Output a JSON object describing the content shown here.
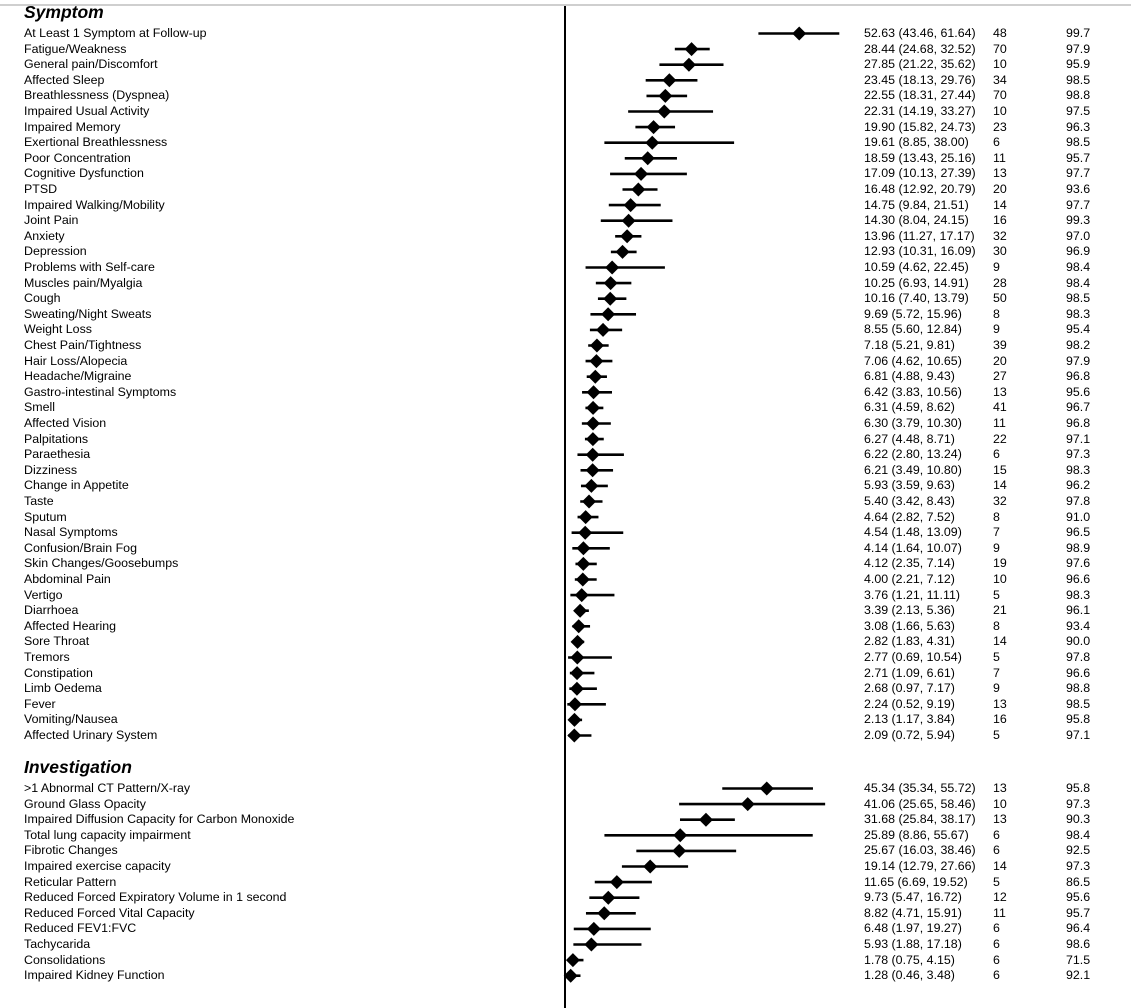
{
  "chart_data": {
    "type": "forest",
    "x_scale": "linear",
    "reference_line": 0,
    "columns": [
      "estimate_ci",
      "n",
      "quality"
    ],
    "sections": [
      {
        "title": "Symptom",
        "rows": [
          {
            "label": "At Least 1 Symptom at Follow-up",
            "est": 52.63,
            "lo": 43.46,
            "hi": 61.64,
            "est_text": "52.63 (43.46, 61.64)",
            "n": "48",
            "q": "99.7",
            "highlight": ""
          },
          {
            "label": "Fatigue/Weakness",
            "est": 28.44,
            "lo": 24.68,
            "hi": 32.52,
            "est_text": "28.44 (24.68, 32.52)",
            "n": "70",
            "q": "97.9",
            "highlight": ""
          },
          {
            "label": "General pain/Discomfort",
            "est": 27.85,
            "lo": 21.22,
            "hi": 35.62,
            "est_text": "27.85 (21.22, 35.62)",
            "n": "10",
            "q": "95.9",
            "highlight": ""
          },
          {
            "label": "Affected Sleep",
            "est": 23.45,
            "lo": 18.13,
            "hi": 29.76,
            "est_text": "23.45 (18.13, 29.76)",
            "n": "34",
            "q": "98.5",
            "highlight": ""
          },
          {
            "label": "Breathlessness (Dyspnea)",
            "est": 22.55,
            "lo": 18.31,
            "hi": 27.44,
            "est_text": "22.55 (18.31, 27.44)",
            "n": "70",
            "q": "98.8",
            "highlight": ""
          },
          {
            "label": "Impaired Usual Activity",
            "est": 22.31,
            "lo": 14.19,
            "hi": 33.27,
            "est_text": "22.31 (14.19, 33.27)",
            "n": "10",
            "q": "97.5",
            "highlight": ""
          },
          {
            "label": "Impaired Memory",
            "est": 19.9,
            "lo": 15.82,
            "hi": 24.73,
            "est_text": "19.90 (15.82, 24.73)",
            "n": "23",
            "q": "96.3",
            "highlight": ""
          },
          {
            "label": "Exertional Breathlessness",
            "est": 19.61,
            "lo": 8.85,
            "hi": 38.0,
            "est_text": "19.61 (8.85, 38.00)",
            "n": "6",
            "q": "98.5",
            "highlight": ""
          },
          {
            "label": "Poor Concentration",
            "est": 18.59,
            "lo": 13.43,
            "hi": 25.16,
            "est_text": "18.59 (13.43, 25.16)",
            "n": "11",
            "q": "95.7",
            "highlight": "cyan"
          },
          {
            "label": "Cognitive Dysfunction",
            "est": 17.09,
            "lo": 10.13,
            "hi": 27.39,
            "est_text": "17.09 (10.13, 27.39)",
            "n": "13",
            "q": "97.7",
            "highlight": "cyan"
          },
          {
            "label": "PTSD",
            "est": 16.48,
            "lo": 12.92,
            "hi": 20.79,
            "est_text": "16.48 (12.92, 20.79)",
            "n": "20",
            "q": "93.6",
            "highlight": "pink"
          },
          {
            "label": "Impaired Walking/Mobility",
            "est": 14.75,
            "lo": 9.84,
            "hi": 21.51,
            "est_text": "14.75 (9.84, 21.51)",
            "n": "14",
            "q": "97.7",
            "highlight": ""
          },
          {
            "label": "Joint Pain",
            "est": 14.3,
            "lo": 8.04,
            "hi": 24.15,
            "est_text": "14.30 (8.04, 24.15)",
            "n": "16",
            "q": "99.3",
            "highlight": ""
          },
          {
            "label": "Anxiety",
            "est": 13.96,
            "lo": 11.27,
            "hi": 17.17,
            "est_text": "13.96 (11.27, 17.17)",
            "n": "32",
            "q": "97.0",
            "highlight": "pink"
          },
          {
            "label": "Depression",
            "est": 12.93,
            "lo": 10.31,
            "hi": 16.09,
            "est_text": "12.93 (10.31, 16.09)",
            "n": "30",
            "q": "96.9",
            "highlight": "pink"
          },
          {
            "label": "Problems with Self-care",
            "est": 10.59,
            "lo": 4.62,
            "hi": 22.45,
            "est_text": "10.59 (4.62, 22.45)",
            "n": "9",
            "q": "98.4",
            "highlight": ""
          },
          {
            "label": "Muscles pain/Myalgia",
            "est": 10.25,
            "lo": 6.93,
            "hi": 14.91,
            "est_text": "10.25 (6.93, 14.91)",
            "n": "28",
            "q": "98.4",
            "highlight": ""
          },
          {
            "label": "Cough",
            "est": 10.16,
            "lo": 7.4,
            "hi": 13.79,
            "est_text": "10.16 (7.40, 13.79)",
            "n": "50",
            "q": "98.5",
            "highlight": ""
          },
          {
            "label": "Sweating/Night Sweats",
            "est": 9.69,
            "lo": 5.72,
            "hi": 15.96,
            "est_text": "9.69 (5.72, 15.96)",
            "n": "8",
            "q": "98.3",
            "highlight": ""
          },
          {
            "label": "Weight Loss",
            "est": 8.55,
            "lo": 5.6,
            "hi": 12.84,
            "est_text": "8.55 (5.60, 12.84)",
            "n": "9",
            "q": "95.4",
            "highlight": ""
          },
          {
            "label": "Chest Pain/Tightness",
            "est": 7.18,
            "lo": 5.21,
            "hi": 9.81,
            "est_text": "7.18 (5.21, 9.81)",
            "n": "39",
            "q": "98.2",
            "highlight": ""
          },
          {
            "label": "Hair Loss/Alopecia",
            "est": 7.06,
            "lo": 4.62,
            "hi": 10.65,
            "est_text": "7.06 (4.62, 10.65)",
            "n": "20",
            "q": "97.9",
            "highlight": ""
          },
          {
            "label": "Headache/Migraine",
            "est": 6.81,
            "lo": 4.88,
            "hi": 9.43,
            "est_text": "6.81 (4.88, 9.43)",
            "n": "27",
            "q": "96.8",
            "highlight": ""
          },
          {
            "label": "Gastro-intestinal Symptoms",
            "est": 6.42,
            "lo": 3.83,
            "hi": 10.56,
            "est_text": "6.42 (3.83, 10.56)",
            "n": "13",
            "q": "95.6",
            "highlight": ""
          },
          {
            "label": "Smell",
            "est": 6.31,
            "lo": 4.59,
            "hi": 8.62,
            "est_text": "6.31 (4.59, 8.62)",
            "n": "41",
            "q": "96.7",
            "highlight": "cyan"
          },
          {
            "label": "Affected Vision",
            "est": 6.3,
            "lo": 3.79,
            "hi": 10.3,
            "est_text": "6.30 (3.79, 10.30)",
            "n": "11",
            "q": "96.8",
            "highlight": "cyan"
          },
          {
            "label": "Palpitations",
            "est": 6.27,
            "lo": 4.48,
            "hi": 8.71,
            "est_text": "6.27 (4.48, 8.71)",
            "n": "22",
            "q": "97.1",
            "highlight": ""
          },
          {
            "label": "Paraethesia",
            "est": 6.22,
            "lo": 2.8,
            "hi": 13.24,
            "est_text": "6.22 (2.80, 13.24)",
            "n": "6",
            "q": "97.3",
            "highlight": ""
          },
          {
            "label": "Dizziness",
            "est": 6.21,
            "lo": 3.49,
            "hi": 10.8,
            "est_text": "6.21 (3.49, 10.80)",
            "n": "15",
            "q": "98.3",
            "highlight": "pink"
          },
          {
            "label": "Change in Appetite",
            "est": 5.93,
            "lo": 3.59,
            "hi": 9.63,
            "est_text": "5.93 (3.59, 9.63)",
            "n": "14",
            "q": "96.2",
            "highlight": ""
          },
          {
            "label": "Taste",
            "est": 5.4,
            "lo": 3.42,
            "hi": 8.43,
            "est_text": "5.40 (3.42, 8.43)",
            "n": "32",
            "q": "97.8",
            "highlight": ""
          },
          {
            "label": "Sputum",
            "est": 4.64,
            "lo": 2.82,
            "hi": 7.52,
            "est_text": "4.64 (2.82, 7.52)",
            "n": "8",
            "q": "91.0",
            "highlight": "cyan"
          },
          {
            "label": "Nasal Symptoms",
            "est": 4.54,
            "lo": 1.48,
            "hi": 13.09,
            "est_text": "4.54 (1.48, 13.09)",
            "n": "7",
            "q": "96.5",
            "highlight": ""
          },
          {
            "label": "Confusion/Brain Fog",
            "est": 4.14,
            "lo": 1.64,
            "hi": 10.07,
            "est_text": "4.14 (1.64, 10.07)",
            "n": "9",
            "q": "98.9",
            "highlight": "cyan"
          },
          {
            "label": "Skin Changes/Goosebumps",
            "est": 4.12,
            "lo": 2.35,
            "hi": 7.14,
            "est_text": "4.12 (2.35, 7.14)",
            "n": "19",
            "q": "97.6",
            "highlight": ""
          },
          {
            "label": "Abdominal Pain",
            "est": 4.0,
            "lo": 2.21,
            "hi": 7.12,
            "est_text": "4.00 (2.21, 7.12)",
            "n": "10",
            "q": "96.6",
            "highlight": ""
          },
          {
            "label": "Vertigo",
            "est": 3.76,
            "lo": 1.21,
            "hi": 11.11,
            "est_text": "3.76 (1.21, 11.11)",
            "n": "5",
            "q": "98.3",
            "highlight": ""
          },
          {
            "label": "Diarrhoea",
            "est": 3.39,
            "lo": 2.13,
            "hi": 5.36,
            "est_text": "3.39 (2.13, 5.36)",
            "n": "21",
            "q": "96.1",
            "highlight": ""
          },
          {
            "label": "Affected Hearing",
            "est": 3.08,
            "lo": 1.66,
            "hi": 5.63,
            "est_text": "3.08 (1.66, 5.63)",
            "n": "8",
            "q": "93.4",
            "highlight": "cyan"
          },
          {
            "label": "Sore Throat",
            "est": 2.82,
            "lo": 1.83,
            "hi": 4.31,
            "est_text": "2.82 (1.83, 4.31)",
            "n": "14",
            "q": "90.0",
            "highlight": ""
          },
          {
            "label": "Tremors",
            "est": 2.77,
            "lo": 0.69,
            "hi": 10.54,
            "est_text": "2.77 (0.69, 10.54)",
            "n": "5",
            "q": "97.8",
            "highlight": ""
          },
          {
            "label": "Constipation",
            "est": 2.71,
            "lo": 1.09,
            "hi": 6.61,
            "est_text": "2.71 (1.09, 6.61)",
            "n": "7",
            "q": "96.6",
            "highlight": ""
          },
          {
            "label": "Limb Oedema",
            "est": 2.68,
            "lo": 0.97,
            "hi": 7.17,
            "est_text": "2.68 (0.97, 7.17)",
            "n": "9",
            "q": "98.8",
            "highlight": ""
          },
          {
            "label": "Fever",
            "est": 2.24,
            "lo": 0.52,
            "hi": 9.19,
            "est_text": "2.24 (0.52, 9.19)",
            "n": "13",
            "q": "98.5",
            "highlight": ""
          },
          {
            "label": "Vomiting/Nausea",
            "est": 2.13,
            "lo": 1.17,
            "hi": 3.84,
            "est_text": "2.13 (1.17, 3.84)",
            "n": "16",
            "q": "95.8",
            "highlight": "pink"
          },
          {
            "label": "Affected Urinary System",
            "est": 2.09,
            "lo": 0.72,
            "hi": 5.94,
            "est_text": "2.09 (0.72, 5.94)",
            "n": "5",
            "q": "97.1",
            "highlight": ""
          }
        ]
      },
      {
        "title": "Investigation",
        "rows": [
          {
            "label": ">1 Abnormal CT Pattern/X-ray",
            "est": 45.34,
            "lo": 35.34,
            "hi": 55.72,
            "est_text": "45.34 (35.34, 55.72)",
            "n": "13",
            "q": "95.8",
            "highlight": ""
          },
          {
            "label": "Ground Glass Opacity",
            "est": 41.06,
            "lo": 25.65,
            "hi": 58.46,
            "est_text": "41.06 (25.65, 58.46)",
            "n": "10",
            "q": "97.3",
            "highlight": ""
          },
          {
            "label": "Impaired Diffusion Capacity for Carbon Monoxide",
            "est": 31.68,
            "lo": 25.84,
            "hi": 38.17,
            "est_text": "31.68 (25.84, 38.17)",
            "n": "13",
            "q": "90.3",
            "highlight": ""
          },
          {
            "label": "Total lung capacity impairment",
            "est": 25.89,
            "lo": 8.86,
            "hi": 55.67,
            "est_text": "25.89 (8.86, 55.67)",
            "n": "6",
            "q": "98.4",
            "highlight": ""
          },
          {
            "label": "Fibrotic Changes",
            "est": 25.67,
            "lo": 16.03,
            "hi": 38.46,
            "est_text": "25.67 (16.03, 38.46)",
            "n": "6",
            "q": "92.5",
            "highlight": ""
          },
          {
            "label": "Impaired exercise capacity",
            "est": 19.14,
            "lo": 12.79,
            "hi": 27.66,
            "est_text": "19.14 (12.79, 27.66)",
            "n": "14",
            "q": "97.3",
            "highlight": ""
          },
          {
            "label": "Reticular Pattern",
            "est": 11.65,
            "lo": 6.69,
            "hi": 19.52,
            "est_text": "11.65 (6.69, 19.52)",
            "n": "5",
            "q": "86.5",
            "highlight": ""
          },
          {
            "label": "Reduced Forced Expiratory Volume in 1 second",
            "est": 9.73,
            "lo": 5.47,
            "hi": 16.72,
            "est_text": "9.73 (5.47, 16.72)",
            "n": "12",
            "q": "95.6",
            "highlight": ""
          },
          {
            "label": "Reduced Forced Vital Capacity",
            "est": 8.82,
            "lo": 4.71,
            "hi": 15.91,
            "est_text": "8.82 (4.71, 15.91)",
            "n": "11",
            "q": "95.7",
            "highlight": ""
          },
          {
            "label": "Reduced FEV1:FVC",
            "est": 6.48,
            "lo": 1.97,
            "hi": 19.27,
            "est_text": "6.48 (1.97, 19.27)",
            "n": "6",
            "q": "96.4",
            "highlight": ""
          },
          {
            "label": "Tachycarida",
            "est": 5.93,
            "lo": 1.88,
            "hi": 17.18,
            "est_text": "5.93 (1.88, 17.18)",
            "n": "6",
            "q": "98.6",
            "highlight": ""
          },
          {
            "label": "Consolidations",
            "est": 1.78,
            "lo": 0.75,
            "hi": 4.15,
            "est_text": "1.78 (0.75, 4.15)",
            "n": "6",
            "q": "71.5",
            "highlight": ""
          },
          {
            "label": "Impaired Kidney Function",
            "est": 1.28,
            "lo": 0.46,
            "hi": 3.48,
            "est_text": "1.28 (0.46, 3.48)",
            "n": "6",
            "q": "92.1",
            "highlight": ""
          }
        ]
      }
    ]
  }
}
